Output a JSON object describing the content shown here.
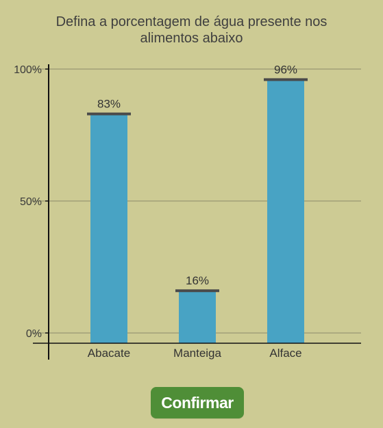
{
  "page": {
    "title_line1": "Defina a porcentagem de água presente nos",
    "title_line2": "alimentos abaixo",
    "confirm_label": "Confirmar"
  },
  "colors": {
    "background": "#cdcb94",
    "bar": "#48a3c4",
    "handle": "#4a4a4a",
    "gridline": "#8a8a6a",
    "axis": "#111111",
    "button": "#4f8e37"
  },
  "chart_data": {
    "type": "bar",
    "title": "Defina a porcentagem de água presente nos alimentos abaixo",
    "xlabel": "",
    "ylabel": "",
    "categories": [
      "Abacate",
      "Manteiga",
      "Alface"
    ],
    "values": [
      83,
      16,
      96
    ],
    "value_labels": [
      "83%",
      "16%",
      "96%"
    ],
    "ylim": [
      0,
      100
    ],
    "yticks": [
      0,
      50,
      100
    ],
    "ytick_labels": [
      "0%",
      "50%",
      "100%"
    ],
    "grid": true,
    "legend": "none"
  }
}
